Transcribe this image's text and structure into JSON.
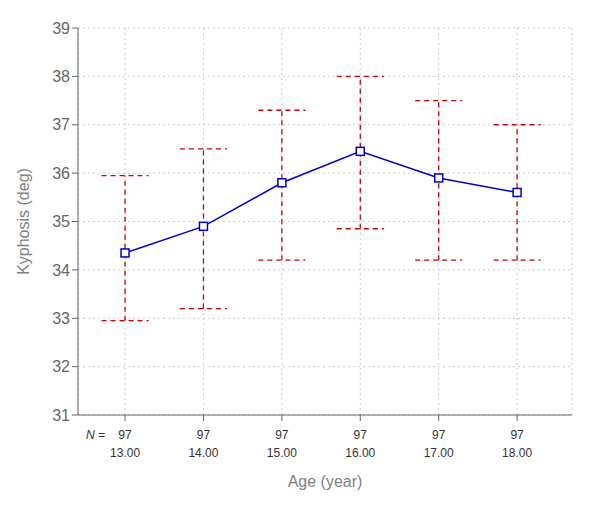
{
  "chart_data": {
    "type": "line",
    "x": [
      13,
      14,
      15,
      16,
      17,
      18
    ],
    "values": [
      34.35,
      34.9,
      35.8,
      36.45,
      35.9,
      35.6
    ],
    "color": "#0000CC",
    "marker": "square",
    "error_bars": {
      "upper": [
        35.95,
        36.5,
        37.3,
        38.0,
        37.5,
        37.0
      ],
      "lower": [
        32.95,
        33.2,
        34.2,
        34.85,
        34.2,
        34.2
      ],
      "color": "#CC0000",
      "line_style": "dashed"
    },
    "n_label": "N =",
    "n_values": [
      97,
      97,
      97,
      97,
      97,
      97
    ],
    "xlabel": "Age (year)",
    "ylabel": "Kyphosis (deg)",
    "xlim": [
      12.4,
      18.7
    ],
    "xticks": [
      {
        "value": 13,
        "label": "13.00"
      },
      {
        "value": 14,
        "label": "14.00"
      },
      {
        "value": 15,
        "label": "15.00"
      },
      {
        "value": 16,
        "label": "16.00"
      },
      {
        "value": 17,
        "label": "17.00"
      },
      {
        "value": 18,
        "label": "18.00"
      }
    ],
    "ylim": [
      31,
      39
    ],
    "yticks": [
      31,
      32,
      33,
      34,
      35,
      36,
      37,
      38,
      39
    ],
    "grid": true
  }
}
